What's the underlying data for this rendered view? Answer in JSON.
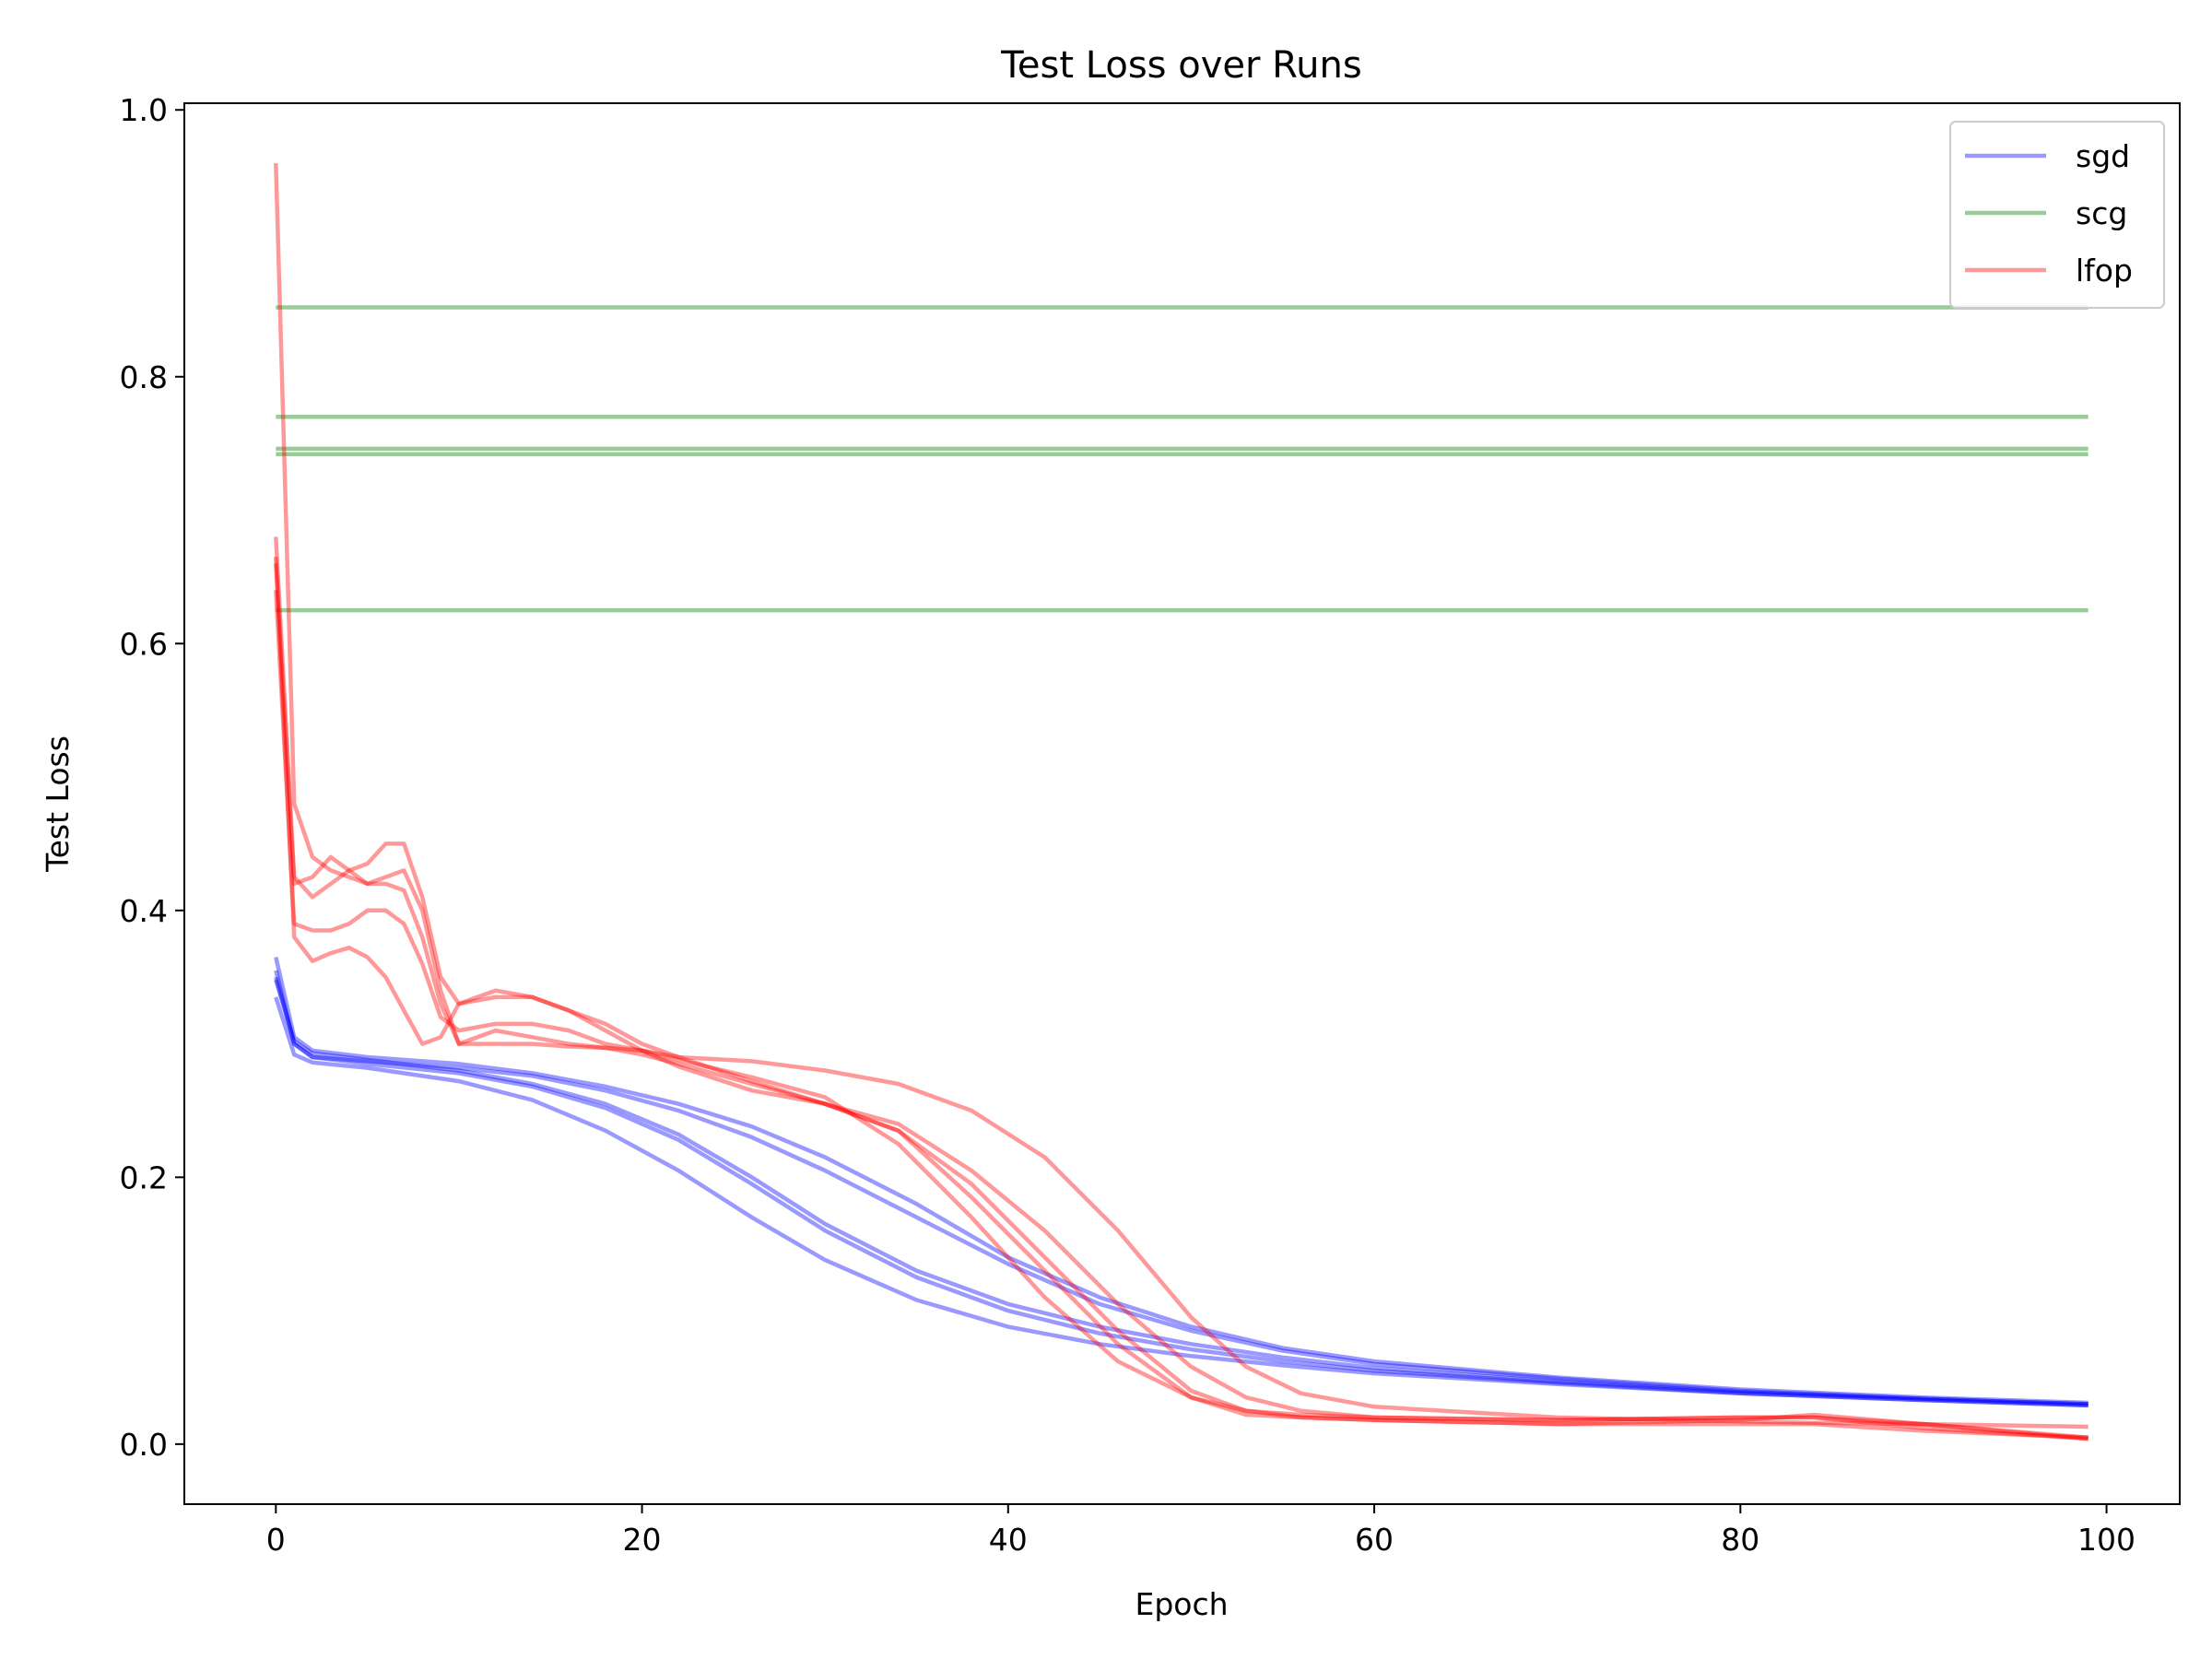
{
  "chart_data": {
    "type": "line",
    "title": "Test Loss over Runs",
    "xlabel": "Epoch",
    "ylabel": "Test Loss",
    "xlim": [
      -5,
      104
    ],
    "ylim": [
      -0.045,
      1.005
    ],
    "x_ticks": [
      0,
      20,
      40,
      60,
      80,
      100
    ],
    "y_ticks": [
      0.0,
      0.2,
      0.4,
      0.6,
      0.8,
      1.0
    ],
    "y_tick_labels": [
      "0.0",
      "0.2",
      "0.4",
      "0.6",
      "0.8",
      "1.0"
    ],
    "x_tick_labels": [
      "0",
      "20",
      "40",
      "60",
      "80",
      "100"
    ],
    "grid": false,
    "legend_position": "top-right",
    "legend": [
      {
        "name": "sgd",
        "color": "#0000ff"
      },
      {
        "name": "scg",
        "color": "#008000"
      },
      {
        "name": "lfop",
        "color": "#ff0000"
      }
    ],
    "series": [
      {
        "name": "sgd",
        "color": "#0000ff",
        "opacity": 0.4,
        "x": [
          0,
          1,
          2,
          5,
          10,
          14,
          18,
          22,
          26,
          30,
          35,
          40,
          45,
          50,
          55,
          60,
          70,
          80,
          90,
          99
        ],
        "y": [
          0.365,
          0.305,
          0.295,
          0.29,
          0.285,
          0.278,
          0.268,
          0.255,
          0.238,
          0.215,
          0.18,
          0.14,
          0.11,
          0.088,
          0.072,
          0.062,
          0.05,
          0.041,
          0.035,
          0.031
        ]
      },
      {
        "name": "sgd",
        "color": "#0000ff",
        "opacity": 0.4,
        "x": [
          0,
          1,
          2,
          5,
          10,
          14,
          18,
          22,
          26,
          30,
          35,
          40,
          45,
          50,
          55,
          60,
          70,
          80,
          90,
          99
        ],
        "y": [
          0.355,
          0.3,
          0.29,
          0.287,
          0.282,
          0.276,
          0.265,
          0.25,
          0.23,
          0.205,
          0.17,
          0.135,
          0.105,
          0.085,
          0.07,
          0.06,
          0.049,
          0.04,
          0.034,
          0.03
        ]
      },
      {
        "name": "sgd",
        "color": "#0000ff",
        "opacity": 0.4,
        "x": [
          0,
          1,
          2,
          5,
          10,
          14,
          18,
          22,
          26,
          30,
          35,
          40,
          45,
          50,
          55,
          60,
          70,
          80,
          90,
          99
        ],
        "y": [
          0.348,
          0.302,
          0.293,
          0.288,
          0.28,
          0.27,
          0.255,
          0.232,
          0.2,
          0.165,
          0.13,
          0.105,
          0.088,
          0.075,
          0.065,
          0.057,
          0.047,
          0.039,
          0.034,
          0.03
        ]
      },
      {
        "name": "sgd",
        "color": "#0000ff",
        "opacity": 0.4,
        "x": [
          0,
          1,
          2,
          5,
          10,
          14,
          18,
          22,
          26,
          30,
          35,
          40,
          45,
          50,
          55,
          60,
          70,
          80,
          90,
          99
        ],
        "y": [
          0.35,
          0.3,
          0.29,
          0.285,
          0.278,
          0.268,
          0.252,
          0.228,
          0.195,
          0.16,
          0.125,
          0.1,
          0.083,
          0.071,
          0.062,
          0.055,
          0.046,
          0.038,
          0.033,
          0.029
        ]
      },
      {
        "name": "sgd",
        "color": "#0000ff",
        "opacity": 0.4,
        "x": [
          0,
          1,
          2,
          5,
          10,
          14,
          18,
          22,
          26,
          30,
          35,
          40,
          45,
          50,
          55,
          60,
          70,
          80,
          90,
          99
        ],
        "y": [
          0.335,
          0.292,
          0.286,
          0.282,
          0.272,
          0.258,
          0.235,
          0.205,
          0.17,
          0.138,
          0.108,
          0.088,
          0.075,
          0.066,
          0.059,
          0.053,
          0.045,
          0.038,
          0.033,
          0.029
        ]
      },
      {
        "name": "scg",
        "color": "#008000",
        "opacity": 0.4,
        "x": [
          0,
          99
        ],
        "y": [
          0.852,
          0.852
        ]
      },
      {
        "name": "scg",
        "color": "#008000",
        "opacity": 0.4,
        "x": [
          0,
          99
        ],
        "y": [
          0.77,
          0.77
        ]
      },
      {
        "name": "scg",
        "color": "#008000",
        "opacity": 0.4,
        "x": [
          0,
          99
        ],
        "y": [
          0.746,
          0.746
        ]
      },
      {
        "name": "scg",
        "color": "#008000",
        "opacity": 0.4,
        "x": [
          0,
          99
        ],
        "y": [
          0.742,
          0.742
        ]
      },
      {
        "name": "scg",
        "color": "#008000",
        "opacity": 0.4,
        "x": [
          0,
          99
        ],
        "y": [
          0.625,
          0.625
        ]
      },
      {
        "name": "lfop",
        "color": "#ff0000",
        "opacity": 0.4,
        "x": [
          0,
          1,
          2,
          3,
          4,
          5,
          6,
          7,
          8,
          9,
          10,
          12,
          14,
          16,
          18,
          20,
          22,
          26,
          30,
          34,
          38,
          42,
          46,
          50,
          53,
          56,
          60,
          70,
          80,
          84,
          90,
          99
        ],
        "y": [
          0.96,
          0.48,
          0.44,
          0.43,
          0.425,
          0.42,
          0.425,
          0.43,
          0.4,
          0.34,
          0.3,
          0.3,
          0.3,
          0.298,
          0.297,
          0.295,
          0.29,
          0.287,
          0.28,
          0.27,
          0.25,
          0.215,
          0.16,
          0.095,
          0.058,
          0.038,
          0.028,
          0.02,
          0.017,
          0.016,
          0.015,
          0.013
        ]
      },
      {
        "name": "lfop",
        "color": "#ff0000",
        "opacity": 0.4,
        "x": [
          0,
          1,
          2,
          3,
          4,
          5,
          6,
          7,
          8,
          9,
          10,
          12,
          14,
          16,
          18,
          20,
          22,
          26,
          30,
          34,
          38,
          42,
          46,
          50,
          53,
          56,
          60,
          70,
          80,
          84,
          90,
          99
        ],
        "y": [
          0.68,
          0.425,
          0.41,
          0.42,
          0.43,
          0.435,
          0.45,
          0.45,
          0.41,
          0.35,
          0.33,
          0.335,
          0.335,
          0.325,
          0.315,
          0.3,
          0.29,
          0.272,
          0.255,
          0.235,
          0.195,
          0.14,
          0.085,
          0.04,
          0.025,
          0.02,
          0.018,
          0.015,
          0.015,
          0.015,
          0.01,
          0.005
        ]
      },
      {
        "name": "lfop",
        "color": "#ff0000",
        "opacity": 0.4,
        "x": [
          0,
          1,
          2,
          3,
          4,
          5,
          6,
          7,
          8,
          9,
          10,
          12,
          14,
          16,
          18,
          20,
          22,
          26,
          30,
          34,
          38,
          42,
          46,
          50,
          53,
          56,
          60,
          70,
          80,
          84,
          90,
          99
        ],
        "y": [
          0.66,
          0.42,
          0.425,
          0.44,
          0.43,
          0.42,
          0.42,
          0.415,
          0.38,
          0.33,
          0.3,
          0.31,
          0.305,
          0.3,
          0.297,
          0.292,
          0.285,
          0.27,
          0.255,
          0.24,
          0.205,
          0.16,
          0.105,
          0.058,
          0.035,
          0.025,
          0.02,
          0.018,
          0.02,
          0.02,
          0.015,
          0.005
        ]
      },
      {
        "name": "lfop",
        "color": "#ff0000",
        "opacity": 0.4,
        "x": [
          0,
          1,
          2,
          3,
          4,
          5,
          6,
          7,
          8,
          9,
          10,
          12,
          14,
          16,
          18,
          20,
          22,
          26,
          30,
          34,
          38,
          42,
          46,
          50,
          53,
          56,
          60,
          70,
          80,
          84,
          90,
          99
        ],
        "y": [
          0.64,
          0.39,
          0.385,
          0.385,
          0.39,
          0.4,
          0.4,
          0.39,
          0.36,
          0.32,
          0.31,
          0.315,
          0.315,
          0.31,
          0.3,
          0.295,
          0.288,
          0.275,
          0.26,
          0.225,
          0.17,
          0.11,
          0.062,
          0.035,
          0.025,
          0.022,
          0.02,
          0.018,
          0.02,
          0.02,
          0.012,
          0.004
        ]
      },
      {
        "name": "lfop",
        "color": "#ff0000",
        "opacity": 0.4,
        "x": [
          0,
          1,
          2,
          3,
          4,
          5,
          6,
          7,
          8,
          9,
          10,
          12,
          14,
          16,
          18,
          20,
          22,
          26,
          30,
          34,
          38,
          42,
          46,
          50,
          53,
          56,
          60,
          70,
          80,
          84,
          90,
          99
        ],
        "y": [
          0.665,
          0.38,
          0.362,
          0.368,
          0.372,
          0.365,
          0.35,
          0.325,
          0.3,
          0.305,
          0.33,
          0.34,
          0.335,
          0.325,
          0.31,
          0.295,
          0.283,
          0.265,
          0.255,
          0.235,
          0.185,
          0.13,
          0.075,
          0.035,
          0.022,
          0.02,
          0.018,
          0.015,
          0.018,
          0.022,
          0.015,
          0.004
        ]
      }
    ]
  }
}
